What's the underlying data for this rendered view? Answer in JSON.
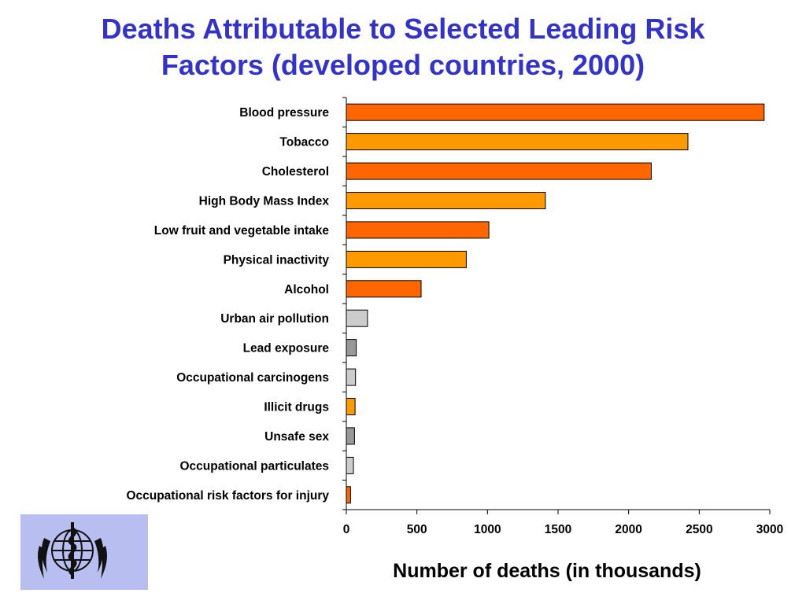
{
  "page": {
    "title_line1": "Deaths Attributable to Selected Leading Risk",
    "title_line2": "Factors (developed countries, 2000)",
    "logo_icon": "who-emblem-icon"
  },
  "colors": {
    "title": "#3333cc",
    "dark_orange": "#ff6600",
    "light_orange": "#ff9900",
    "light_grey": "#cccccc",
    "dark_grey": "#999999",
    "logo_bg": "#b8bff0"
  },
  "chart_data": {
    "type": "bar",
    "orientation": "horizontal",
    "title": "Deaths Attributable to Selected Leading Risk Factors (developed countries, 2000)",
    "xlabel": "Number of deaths (in thousands)",
    "ylabel": "",
    "xlim": [
      0,
      3000
    ],
    "xticks": [
      0,
      500,
      1000,
      1500,
      2000,
      2500,
      3000
    ],
    "grid": false,
    "categories": [
      "Blood pressure",
      "Tobacco",
      "Cholesterol",
      "High Body Mass Index",
      "Low fruit and vegetable intake",
      "Physical inactivity",
      "Alcohol",
      "Urban air pollution",
      "Lead exposure",
      "Occupational carcinogens",
      "Illicit drugs",
      "Unsafe sex",
      "Occupational particulates",
      "Occupational risk factors for injury"
    ],
    "values": [
      2960,
      2420,
      2160,
      1410,
      1010,
      850,
      530,
      150,
      70,
      65,
      62,
      58,
      50,
      30
    ],
    "bar_colors": [
      "#ff6600",
      "#ff9900",
      "#ff6600",
      "#ff9900",
      "#ff6600",
      "#ff9900",
      "#ff6600",
      "#cccccc",
      "#999999",
      "#cccccc",
      "#ff9900",
      "#999999",
      "#cccccc",
      "#ff6600"
    ]
  }
}
